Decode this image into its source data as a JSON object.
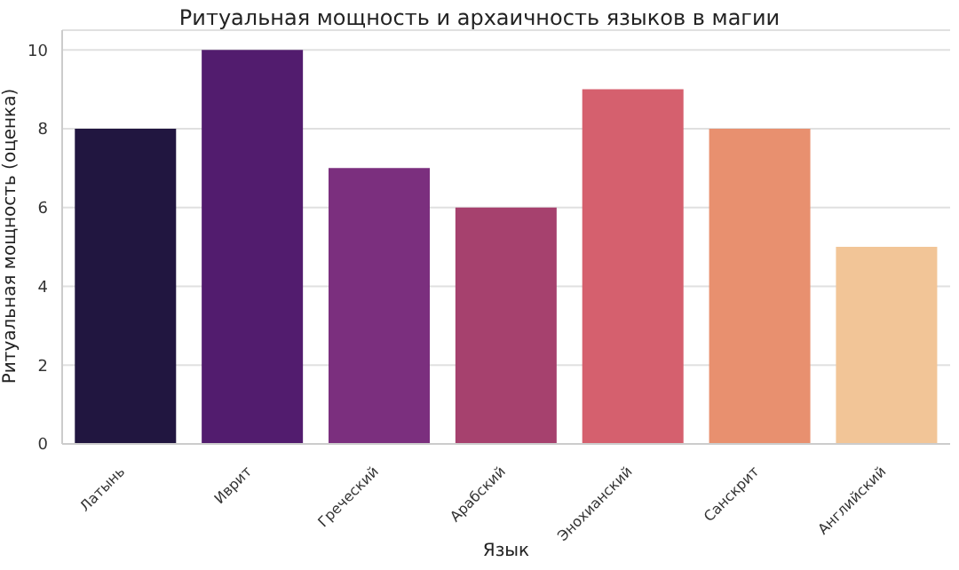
{
  "chart_data": {
    "type": "bar",
    "title": "Ритуальная мощность и архаичность языков в магии",
    "xlabel": "Язык",
    "ylabel": "Ритуальная мощность (оценка)",
    "categories": [
      "Латынь",
      "Иврит",
      "Греческий",
      "Арабский",
      "Энохианский",
      "Санскрит",
      "Английский"
    ],
    "values": [
      8,
      10,
      7,
      6,
      9,
      8,
      5
    ],
    "colors": [
      "#211640",
      "#521c6e",
      "#7b2f7e",
      "#a6416e",
      "#d5606e",
      "#e8906f",
      "#f2c597"
    ],
    "ylim": [
      0,
      10.5
    ],
    "yticks": [
      0,
      2,
      4,
      6,
      8,
      10
    ],
    "grid": "y",
    "legend": false
  }
}
